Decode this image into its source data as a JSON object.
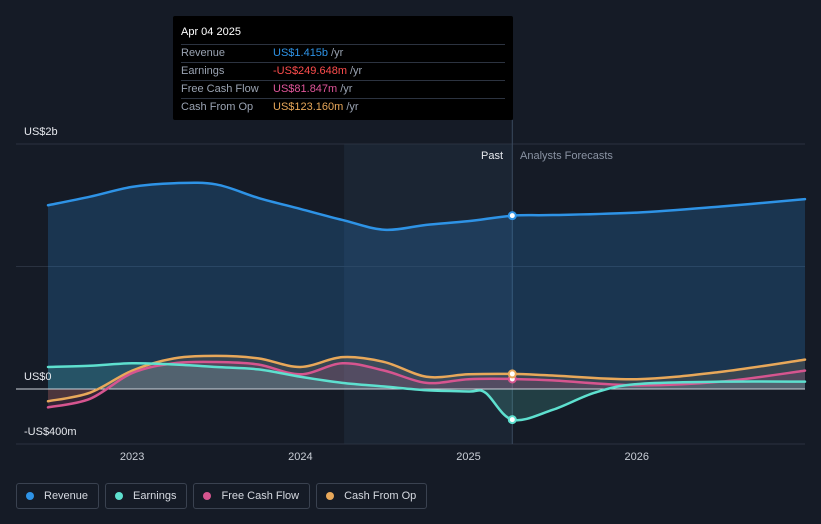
{
  "tooltip": {
    "date": "Apr 04 2025",
    "rows": [
      {
        "name": "Revenue",
        "value": "US$1.415b",
        "unit": "/yr",
        "color": "#2e93e6"
      },
      {
        "name": "Earnings",
        "value": "-US$249.648m",
        "unit": "/yr",
        "color": "#ff4d4d"
      },
      {
        "name": "Free Cash Flow",
        "value": "US$81.847m",
        "unit": "/yr",
        "color": "#e0559a"
      },
      {
        "name": "Cash From Op",
        "value": "US$123.160m",
        "unit": "/yr",
        "color": "#e8a85a"
      }
    ]
  },
  "past_label": "Past",
  "forecast_label": "Analysts Forecasts",
  "legend": [
    {
      "label": "Revenue",
      "color": "#2e93e6"
    },
    {
      "label": "Earnings",
      "color": "#5ee0cf"
    },
    {
      "label": "Free Cash Flow",
      "color": "#d6558f"
    },
    {
      "label": "Cash From Op",
      "color": "#e8a85a"
    }
  ],
  "chart_data": {
    "type": "area",
    "x_ticks": [
      2023,
      2024,
      2025,
      2026
    ],
    "y_tick_labels": [
      "US$2b",
      "US$0",
      "-US$400m"
    ],
    "ylim": [
      -400,
      2000
    ],
    "xlim": [
      2022.5,
      2027.0
    ],
    "past_end": 2025.26,
    "highlight_start": 2024.26,
    "grid": true,
    "legend_position": "bottom-left",
    "series": [
      {
        "name": "Revenue",
        "color": "#2e93e6",
        "points": [
          [
            2022.5,
            1500
          ],
          [
            2022.75,
            1570
          ],
          [
            2023.0,
            1650
          ],
          [
            2023.25,
            1680
          ],
          [
            2023.5,
            1670
          ],
          [
            2023.75,
            1560
          ],
          [
            2024.0,
            1470
          ],
          [
            2024.25,
            1380
          ],
          [
            2024.5,
            1300
          ],
          [
            2024.75,
            1340
          ],
          [
            2025.0,
            1370
          ],
          [
            2025.26,
            1415
          ],
          [
            2025.5,
            1420
          ],
          [
            2026.0,
            1440
          ],
          [
            2026.5,
            1490
          ],
          [
            2027.0,
            1550
          ]
        ]
      },
      {
        "name": "Earnings",
        "color": "#5ee0cf",
        "points": [
          [
            2022.5,
            180
          ],
          [
            2022.75,
            190
          ],
          [
            2023.0,
            210
          ],
          [
            2023.25,
            200
          ],
          [
            2023.5,
            180
          ],
          [
            2023.75,
            160
          ],
          [
            2024.0,
            100
          ],
          [
            2024.25,
            50
          ],
          [
            2024.5,
            20
          ],
          [
            2024.75,
            -10
          ],
          [
            2025.0,
            -20
          ],
          [
            2025.1,
            -30
          ],
          [
            2025.26,
            -250
          ],
          [
            2025.5,
            -170
          ],
          [
            2025.75,
            -30
          ],
          [
            2026.0,
            40
          ],
          [
            2026.5,
            60
          ],
          [
            2027.0,
            60
          ]
        ]
      },
      {
        "name": "Free Cash Flow",
        "color": "#d6558f",
        "points": [
          [
            2022.5,
            -150
          ],
          [
            2022.75,
            -80
          ],
          [
            2023.0,
            130
          ],
          [
            2023.25,
            210
          ],
          [
            2023.5,
            220
          ],
          [
            2023.75,
            200
          ],
          [
            2024.0,
            120
          ],
          [
            2024.25,
            210
          ],
          [
            2024.5,
            150
          ],
          [
            2024.75,
            50
          ],
          [
            2025.0,
            80
          ],
          [
            2025.26,
            82
          ],
          [
            2025.5,
            70
          ],
          [
            2026.0,
            30
          ],
          [
            2026.5,
            60
          ],
          [
            2027.0,
            150
          ]
        ]
      },
      {
        "name": "Cash From Op",
        "color": "#e8a85a",
        "points": [
          [
            2022.5,
            -100
          ],
          [
            2022.75,
            -30
          ],
          [
            2023.0,
            150
          ],
          [
            2023.25,
            250
          ],
          [
            2023.5,
            270
          ],
          [
            2023.75,
            250
          ],
          [
            2024.0,
            180
          ],
          [
            2024.25,
            260
          ],
          [
            2024.5,
            220
          ],
          [
            2024.75,
            100
          ],
          [
            2025.0,
            120
          ],
          [
            2025.26,
            123
          ],
          [
            2025.5,
            110
          ],
          [
            2026.0,
            80
          ],
          [
            2026.5,
            140
          ],
          [
            2027.0,
            240
          ]
        ]
      }
    ]
  }
}
